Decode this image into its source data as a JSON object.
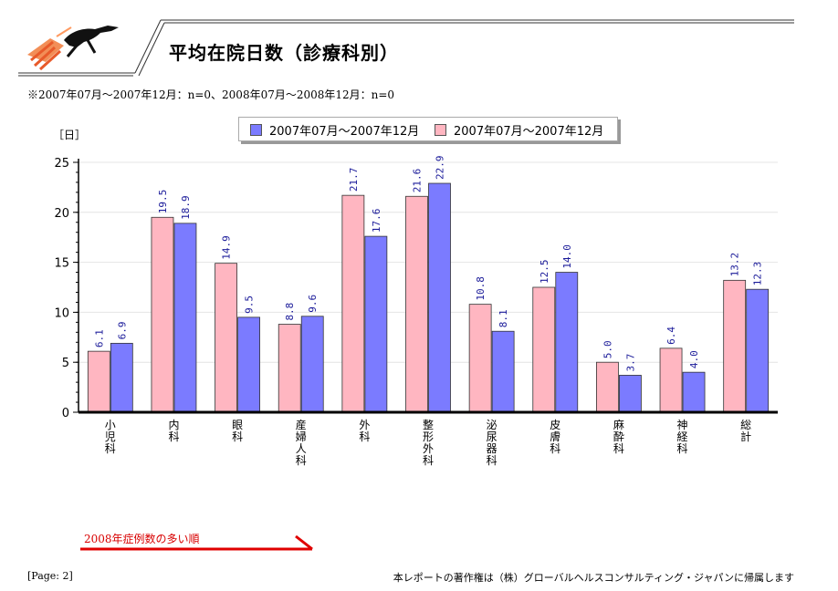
{
  "header": {
    "title": "平均在院日数（診療科別）",
    "period_note": "※2007年07月～2007年12月：n=0、2008年07月～2008年12月：n=0",
    "logo_icon": "greyhound-logo-icon"
  },
  "colors": {
    "series_a": "#ffb6c1",
    "series_b": "#7b7bff",
    "accent_red": "#e00000"
  },
  "chart_data": {
    "type": "bar",
    "ylabel": "［日］",
    "ylim": [
      0,
      25
    ],
    "yticks": [
      0,
      5,
      10,
      15,
      20,
      25
    ],
    "grid": true,
    "legend_position": "top",
    "categories": [
      "小児科",
      "内科",
      "眼科",
      "産婦人科",
      "外科",
      "整形外科",
      "泌尿器科",
      "皮膚科",
      "麻酔科",
      "神経科",
      "総計"
    ],
    "series": [
      {
        "name": "2007年07月～2007年12月",
        "color": "#ffb6c1",
        "values": [
          6.1,
          19.5,
          14.9,
          8.8,
          21.7,
          21.6,
          10.8,
          12.5,
          5.0,
          6.4,
          13.2
        ]
      },
      {
        "name": "2007年07月～2007年12月",
        "color": "#7b7bff",
        "values": [
          6.9,
          18.9,
          9.5,
          9.6,
          17.6,
          22.9,
          8.1,
          14.0,
          3.7,
          4.0,
          12.3
        ]
      }
    ],
    "legend_order": [
      1,
      0
    ]
  },
  "footer": {
    "sort_note": "2008年症例数の多い順",
    "page_number": "[Page: 2]",
    "copyright": "本レポートの著作権は（株）グローバルヘルスコンサルティング・ジャパンに帰属します"
  }
}
